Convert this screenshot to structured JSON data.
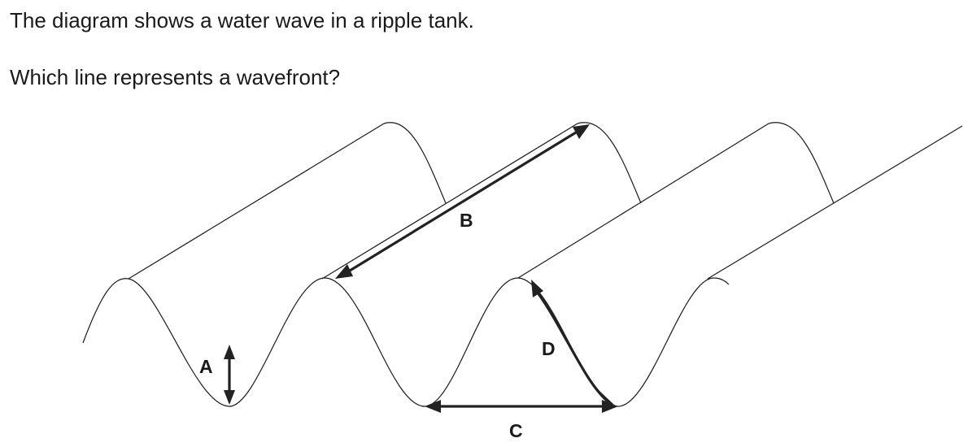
{
  "question": {
    "intro": "The diagram shows a water wave in a ripple tank.",
    "prompt": "Which line represents a wavefront?"
  },
  "diagram": {
    "labels": {
      "a": "A",
      "b": "B",
      "c": "C",
      "d": "D"
    },
    "colors": {
      "outline": "#1a1a1a",
      "arrows": "#222222"
    }
  }
}
